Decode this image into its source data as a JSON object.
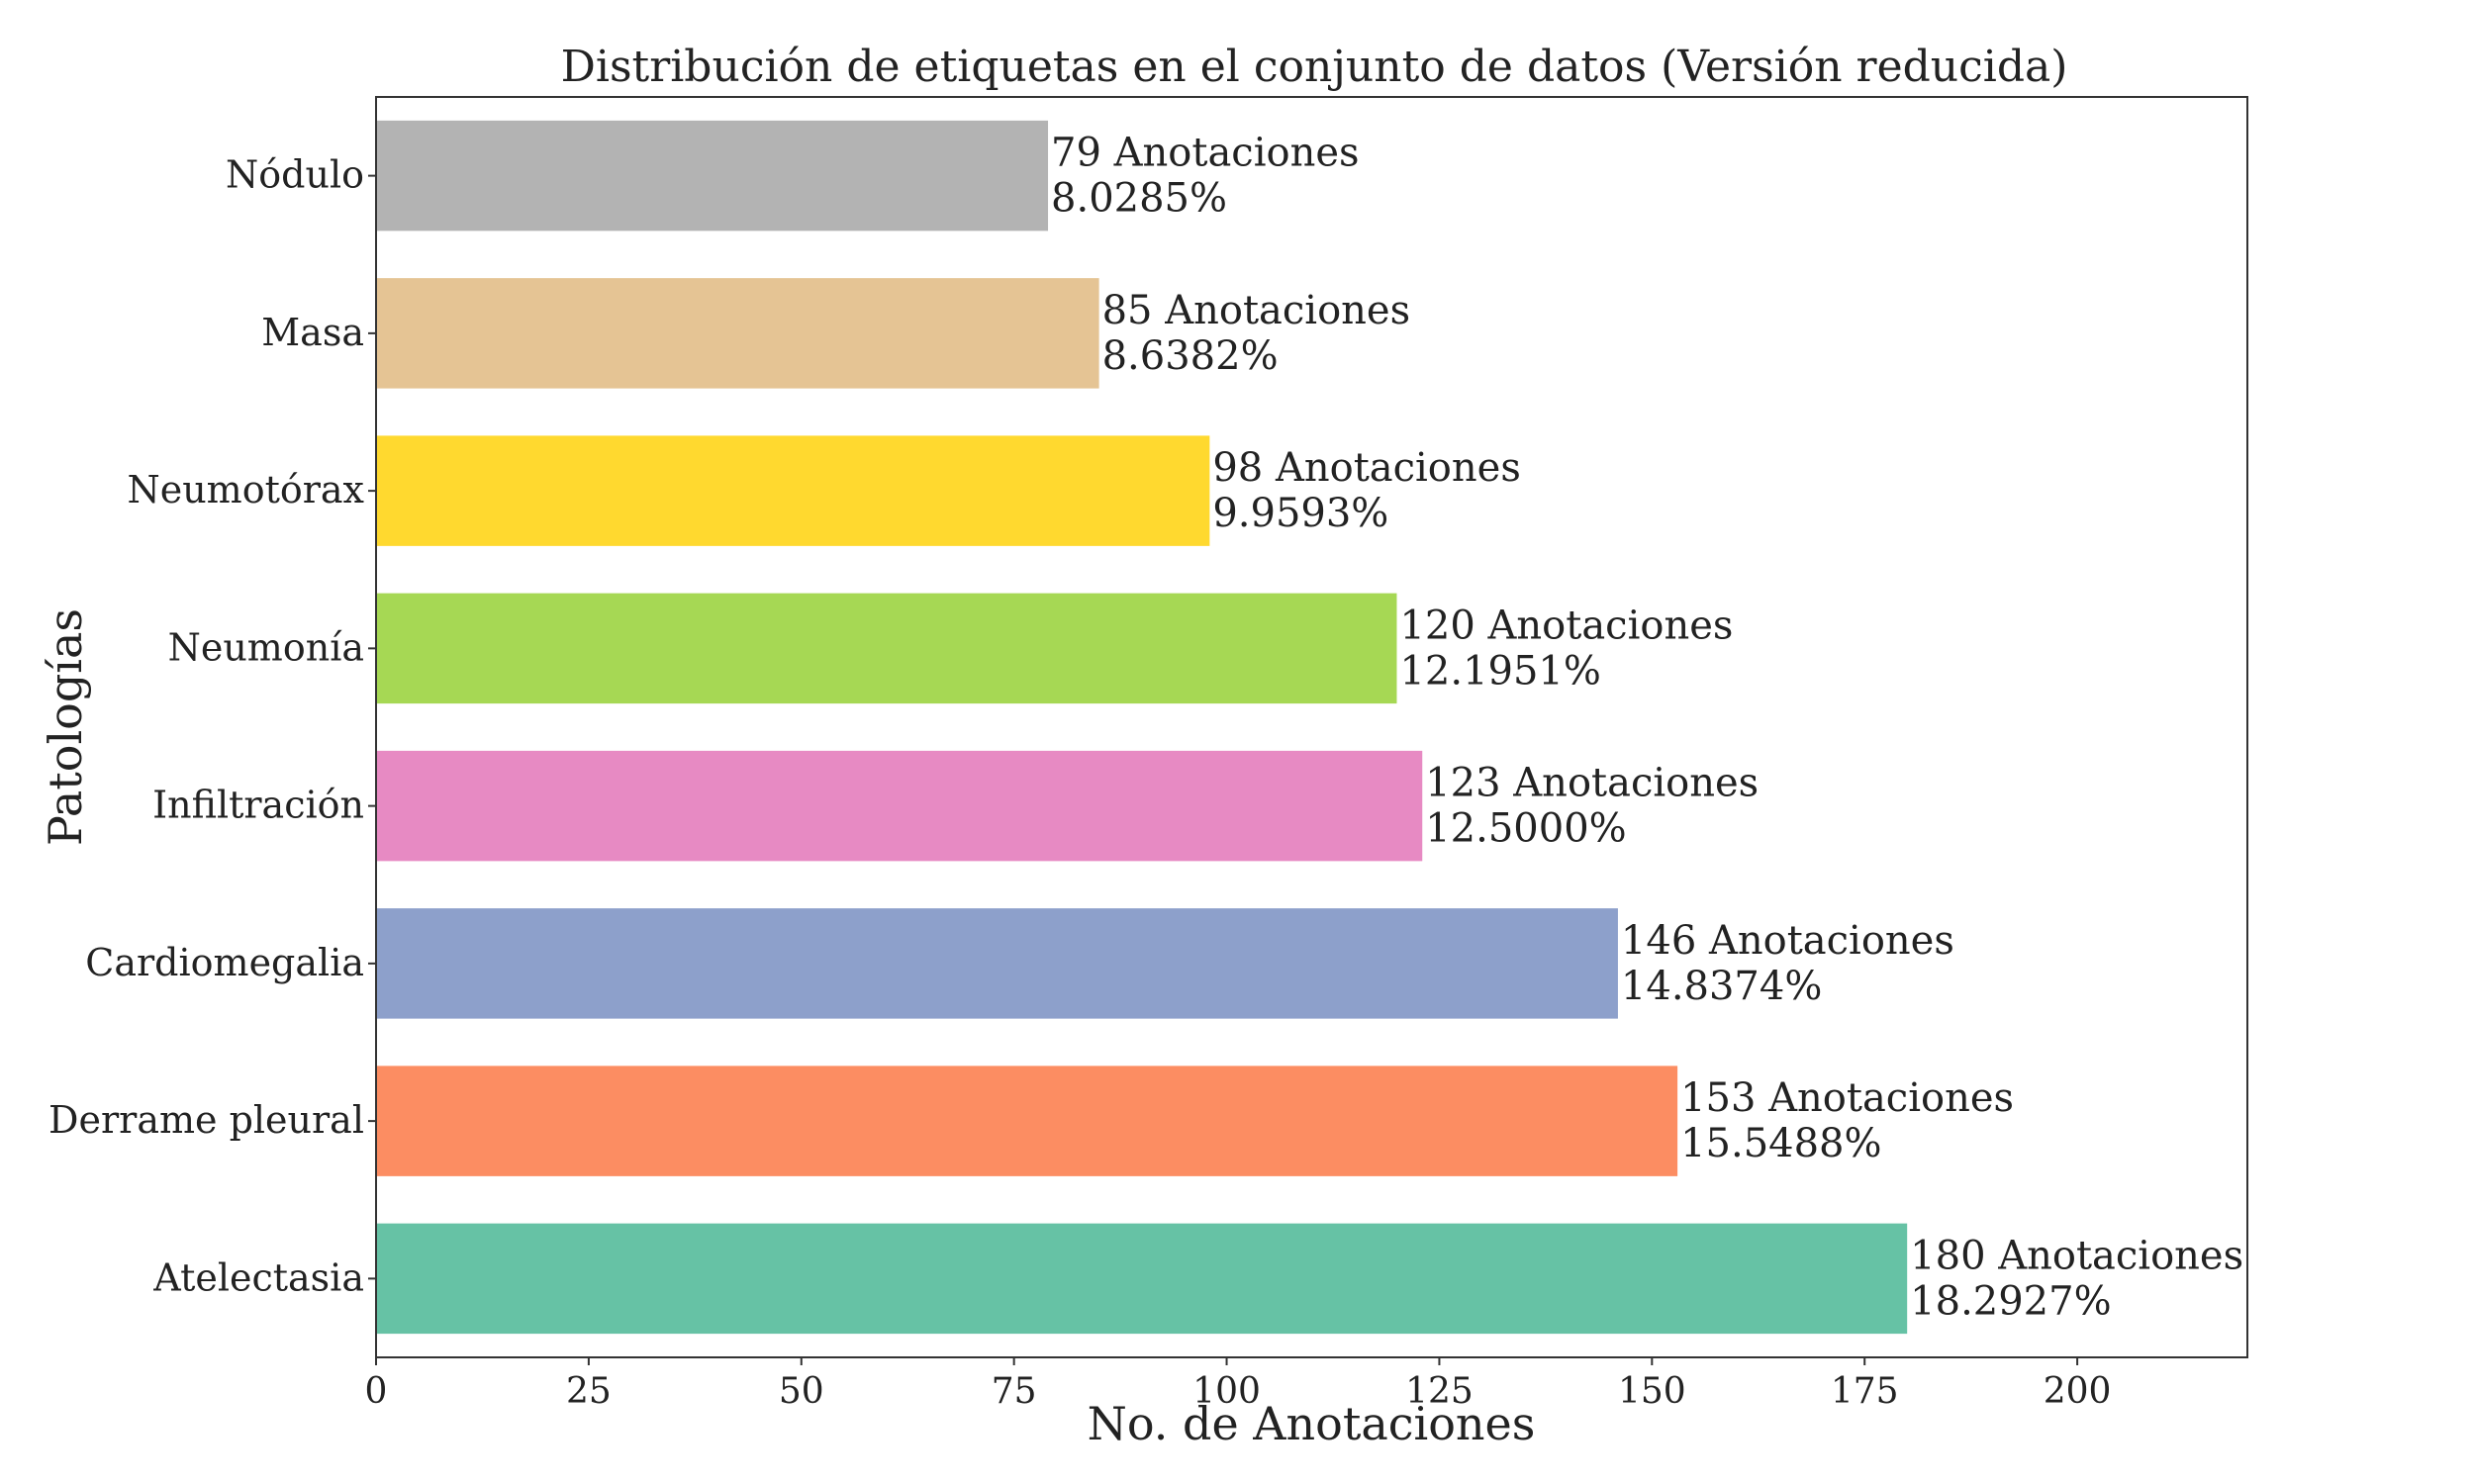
{
  "chart_data": {
    "type": "bar",
    "orientation": "horizontal",
    "title": "Distribución de etiquetas en el conjunto de datos (Versión reducida)",
    "xlabel": "No. de Anotaciones",
    "ylabel": "Patologías",
    "xlim": [
      0,
      220
    ],
    "xticks": [
      "0",
      "25",
      "50",
      "75",
      "100",
      "125",
      "150",
      "175",
      "200"
    ],
    "categories": [
      "Nódulo",
      "Masa",
      "Neumotórax",
      "Neumonía",
      "Infiltración",
      "Cardiomegalia",
      "Derrame pleural",
      "Atelectasia"
    ],
    "values": [
      79,
      85,
      98,
      120,
      123,
      146,
      153,
      180
    ],
    "value_labels": [
      "79 Anotaciones",
      "85 Anotaciones",
      "98 Anotaciones",
      "120 Anotaciones",
      "123 Anotaciones",
      "146 Anotaciones",
      "153 Anotaciones",
      "180 Anotaciones"
    ],
    "percent_labels": [
      "8.0285%",
      "8.6382%",
      "9.9593%",
      "12.1951%",
      "12.5000%",
      "14.8374%",
      "15.5488%",
      "18.2927%"
    ],
    "colors": [
      "#b3b3b3",
      "#e5c494",
      "#ffd92f",
      "#a6d854",
      "#e78ac3",
      "#8da0cb",
      "#fc8d62",
      "#66c2a5"
    ],
    "grid": false,
    "legend": "none"
  }
}
